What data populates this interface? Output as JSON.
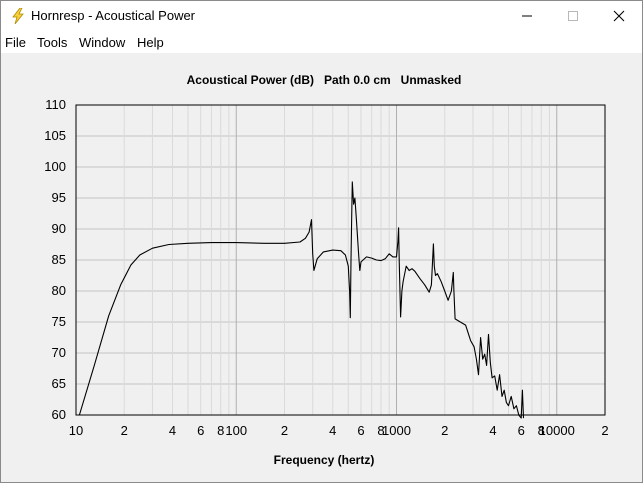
{
  "window": {
    "title": "Hornresp - Acoustical Power",
    "controls": [
      "minimize",
      "maximize",
      "close"
    ]
  },
  "menu": [
    "File",
    "Tools",
    "Window",
    "Help"
  ],
  "chart_data": {
    "type": "line",
    "title": "Acoustical Power (dB)   Path 0.0 cm   Unmasked",
    "xlabel": "Frequency (hertz)",
    "ylabel": "",
    "xscale": "log",
    "xlim": [
      10,
      20000
    ],
    "ylim": [
      60,
      110
    ],
    "yticks": [
      60,
      65,
      70,
      75,
      80,
      85,
      90,
      95,
      100,
      105,
      110
    ],
    "xticks": [
      {
        "v": 10,
        "label": "10"
      },
      {
        "v": 20,
        "label": "2"
      },
      {
        "v": 40,
        "label": "4"
      },
      {
        "v": 60,
        "label": "6"
      },
      {
        "v": 80,
        "label": "8"
      },
      {
        "v": 100,
        "label": "100"
      },
      {
        "v": 200,
        "label": "2"
      },
      {
        "v": 400,
        "label": "4"
      },
      {
        "v": 600,
        "label": "6"
      },
      {
        "v": 800,
        "label": "8"
      },
      {
        "v": 1000,
        "label": "1000"
      },
      {
        "v": 2000,
        "label": "2"
      },
      {
        "v": 4000,
        "label": "4"
      },
      {
        "v": 6000,
        "label": "6"
      },
      {
        "v": 8000,
        "label": "8"
      },
      {
        "v": 10000,
        "label": "10000"
      },
      {
        "v": 20000,
        "label": "2"
      }
    ],
    "grid": true,
    "series": [
      {
        "values": [
          [
            10.5,
            60
          ],
          [
            13,
            68
          ],
          [
            16,
            76
          ],
          [
            19,
            81
          ],
          [
            22,
            84.2
          ],
          [
            25,
            85.8
          ],
          [
            30,
            86.9
          ],
          [
            38,
            87.5
          ],
          [
            50,
            87.7
          ],
          [
            70,
            87.8
          ],
          [
            100,
            87.8
          ],
          [
            150,
            87.7
          ],
          [
            200,
            87.7
          ],
          [
            250,
            87.9
          ],
          [
            270,
            88.5
          ],
          [
            285,
            89.5
          ],
          [
            295,
            91.5
          ],
          [
            300,
            86
          ],
          [
            305,
            83.3
          ],
          [
            320,
            85.2
          ],
          [
            350,
            86.3
          ],
          [
            400,
            86.6
          ],
          [
            450,
            86.5
          ],
          [
            480,
            85.8
          ],
          [
            500,
            84
          ],
          [
            510,
            80
          ],
          [
            515,
            75.7
          ],
          [
            520,
            85
          ],
          [
            525,
            92
          ],
          [
            530,
            97.6
          ],
          [
            540,
            94
          ],
          [
            550,
            95
          ],
          [
            560,
            92
          ],
          [
            570,
            89
          ],
          [
            580,
            86
          ],
          [
            590,
            83.3
          ],
          [
            600,
            84.7
          ],
          [
            650,
            85.5
          ],
          [
            700,
            85.3
          ],
          [
            750,
            85
          ],
          [
            800,
            84.9
          ],
          [
            850,
            85.2
          ],
          [
            900,
            86
          ],
          [
            950,
            85.5
          ],
          [
            1000,
            85.5
          ],
          [
            1020,
            88
          ],
          [
            1030,
            90.2
          ],
          [
            1040,
            85
          ],
          [
            1060,
            75.8
          ],
          [
            1080,
            80
          ],
          [
            1100,
            81.5
          ],
          [
            1150,
            84
          ],
          [
            1200,
            83.3
          ],
          [
            1250,
            83.6
          ],
          [
            1300,
            83.2
          ],
          [
            1400,
            82
          ],
          [
            1500,
            81
          ],
          [
            1600,
            79.8
          ],
          [
            1650,
            81
          ],
          [
            1700,
            87.6
          ],
          [
            1720,
            84
          ],
          [
            1750,
            82.5
          ],
          [
            1800,
            82.8
          ],
          [
            1900,
            81.5
          ],
          [
            2000,
            80
          ],
          [
            2100,
            78.5
          ],
          [
            2200,
            80
          ],
          [
            2260,
            83
          ],
          [
            2280,
            80
          ],
          [
            2320,
            75.5
          ],
          [
            2500,
            75
          ],
          [
            2700,
            74.5
          ],
          [
            2900,
            72
          ],
          [
            3050,
            71
          ],
          [
            3150,
            69
          ],
          [
            3250,
            66.5
          ],
          [
            3350,
            72.5
          ],
          [
            3450,
            69
          ],
          [
            3550,
            69.8
          ],
          [
            3650,
            68
          ],
          [
            3750,
            73
          ],
          [
            3850,
            68.5
          ],
          [
            3950,
            66
          ],
          [
            4100,
            66.3
          ],
          [
            4250,
            64
          ],
          [
            4400,
            66.5
          ],
          [
            4550,
            63
          ],
          [
            4700,
            64
          ],
          [
            4850,
            62
          ],
          [
            5000,
            61.5
          ],
          [
            5200,
            63
          ],
          [
            5400,
            61
          ],
          [
            5600,
            61.5
          ],
          [
            5800,
            60
          ],
          [
            6000,
            59.5
          ],
          [
            6100,
            64
          ],
          [
            6200,
            59.5
          ]
        ]
      }
    ]
  }
}
